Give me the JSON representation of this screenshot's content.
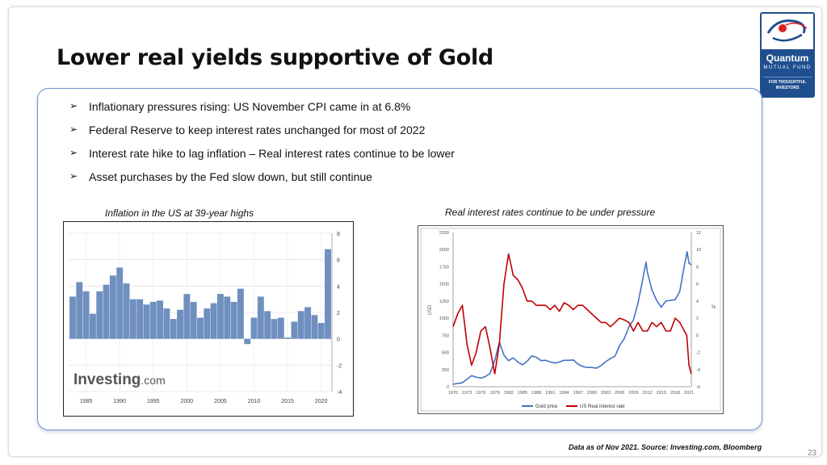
{
  "slide": {
    "title": "Lower real yields supportive of Gold",
    "page_number": "23",
    "footnote": "Data as of Nov 2021. Source: Investing.com, Bloomberg"
  },
  "logo": {
    "name": "Quantum",
    "subtitle": "MUTUAL FUND",
    "tagline_1": "FOR THOUGHTFUL",
    "tagline_2": "INVESTORS",
    "brand_color": "#1f4f8f",
    "accent_color": "#e02020"
  },
  "bullets": [
    "Inflationary pressures rising: US November CPI came in at 6.8%",
    "Federal Reserve to keep interest rates unchanged for most of 2022",
    "Interest rate hike to lag inflation – Real interest rates continue to be lower",
    "Asset purchases by the Fed slow down, but still continue"
  ],
  "chart_data": [
    {
      "type": "bar",
      "caption": "Inflation in the US at 39-year highs",
      "watermark": "Investing",
      "watermark_suffix": ".com",
      "x": [
        1983,
        1984,
        1985,
        1986,
        1987,
        1988,
        1989,
        1990,
        1991,
        1992,
        1993,
        1994,
        1995,
        1996,
        1997,
        1998,
        1999,
        2000,
        2001,
        2002,
        2003,
        2004,
        2005,
        2006,
        2007,
        2008,
        2009,
        2010,
        2011,
        2012,
        2013,
        2014,
        2015,
        2016,
        2017,
        2018,
        2019,
        2020,
        2021
      ],
      "values": [
        3.2,
        4.3,
        3.6,
        1.9,
        3.6,
        4.1,
        4.8,
        5.4,
        4.2,
        3.0,
        3.0,
        2.6,
        2.8,
        2.9,
        2.3,
        1.5,
        2.2,
        3.4,
        2.8,
        1.6,
        2.3,
        2.7,
        3.4,
        3.2,
        2.8,
        3.8,
        -0.4,
        1.6,
        3.2,
        2.1,
        1.5,
        1.6,
        0.1,
        1.3,
        2.1,
        2.4,
        1.8,
        1.2,
        6.8
      ],
      "x_ticks": [
        "1985",
        "1990",
        "1995",
        "2000",
        "2005",
        "2010",
        "2015",
        "2020"
      ],
      "y_ticks": [
        "8",
        "6",
        "4",
        "2",
        "0",
        "-2",
        "-4"
      ],
      "ylim": [
        -4,
        8
      ],
      "bar_color": "#6f8fbf",
      "grid": true
    },
    {
      "type": "line",
      "caption": "Real interest rates continue to be under pressure",
      "ylabel_left": "USD",
      "ylabel_right": "%",
      "x_ticks": [
        "1970",
        "1973",
        "1976",
        "1979",
        "1982",
        "1985",
        "1988",
        "1991",
        "1994",
        "1997",
        "2000",
        "2003",
        "2006",
        "2009",
        "2012",
        "2015",
        "2018",
        "2021"
      ],
      "y_left_ticks": [
        "2250",
        "2000",
        "1750",
        "1500",
        "1250",
        "1000",
        "750",
        "500",
        "250",
        "0"
      ],
      "y_right_ticks": [
        "12",
        "10",
        "8",
        "6",
        "4",
        "2",
        "0",
        "-2",
        "-4",
        "-6"
      ],
      "ylim_left": [
        0,
        2250
      ],
      "ylim_right": [
        -6,
        12
      ],
      "xlim": [
        1970,
        2021.5
      ],
      "legend_position": "bottom",
      "series": [
        {
          "name": "Gold price",
          "axis": "left",
          "color": "#4472c4",
          "x": [
            1970,
            1972,
            1974,
            1975,
            1976,
            1977,
            1978,
            1979,
            1980,
            1980.5,
            1981,
            1982,
            1983,
            1984,
            1985,
            1986,
            1987,
            1988,
            1989,
            1990,
            1991,
            1992,
            1993,
            1994,
            1995,
            1996,
            1997,
            1998,
            1999,
            2000,
            2001,
            2002,
            2003,
            2004,
            2005,
            2006,
            2007,
            2008,
            2009,
            2010,
            2011,
            2011.7,
            2012,
            2013,
            2014,
            2015,
            2016,
            2017,
            2018,
            2019,
            2020,
            2020.6,
            2021,
            2021.5
          ],
          "values": [
            36,
            58,
            160,
            140,
            125,
            148,
            195,
            380,
            650,
            560,
            460,
            380,
            420,
            360,
            320,
            370,
            450,
            430,
            380,
            385,
            360,
            345,
            360,
            385,
            385,
            390,
            330,
            295,
            280,
            280,
            270,
            310,
            365,
            410,
            445,
            600,
            700,
            870,
            975,
            1225,
            1570,
            1820,
            1670,
            1410,
            1260,
            1160,
            1250,
            1260,
            1270,
            1390,
            1770,
            1970,
            1800,
            1780
          ]
        },
        {
          "name": "US Real interest rate",
          "axis": "right",
          "color": "#c00000",
          "x": [
            1970,
            1971,
            1972,
            1973,
            1974,
            1975,
            1976,
            1977,
            1978,
            1979,
            1980,
            1981,
            1982,
            1983,
            1984,
            1985,
            1986,
            1987,
            1988,
            1989,
            1990,
            1991,
            1992,
            1993,
            1994,
            1995,
            1996,
            1997,
            1998,
            1999,
            2000,
            2001,
            2002,
            2003,
            2004,
            2005,
            2006,
            2007,
            2008,
            2009,
            2010,
            2011,
            2012,
            2013,
            2014,
            2015,
            2016,
            2017,
            2018,
            2019,
            2020,
            2020.5,
            2021,
            2021.5
          ],
          "values": [
            1.0,
            2.5,
            3.5,
            -1.0,
            -3.5,
            -2.0,
            0.5,
            1.0,
            -1.5,
            -4.5,
            -1.0,
            6.0,
            9.5,
            7.0,
            6.5,
            5.5,
            4.0,
            4.0,
            3.5,
            3.5,
            3.5,
            3.0,
            3.5,
            2.8,
            3.8,
            3.5,
            3.0,
            3.5,
            3.5,
            3.0,
            2.5,
            2.0,
            1.5,
            1.5,
            1.0,
            1.5,
            2.0,
            1.8,
            1.5,
            0.5,
            1.5,
            0.5,
            0.5,
            1.5,
            1.0,
            1.5,
            0.5,
            0.5,
            2.0,
            1.5,
            0.5,
            0.0,
            -3.5,
            -4.5
          ]
        }
      ],
      "grid": false
    }
  ]
}
